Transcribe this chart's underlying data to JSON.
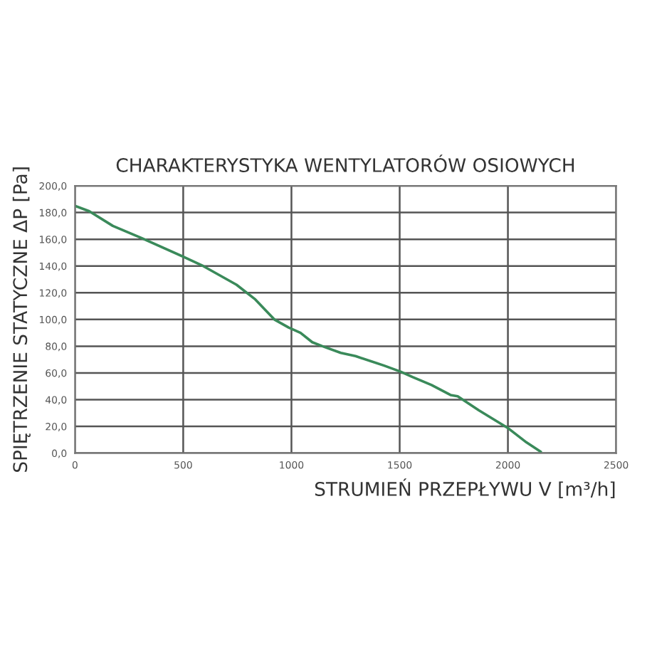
{
  "chart_data": {
    "type": "line",
    "title": "CHARAKTERYSTYKA WENTYLATORÓW OSIOWYCH",
    "xlabel": "STRUMIEŃ PRZEPŁYWU V [m³/h]",
    "ylabel": "SPIĘTRZENIE STATYCZNE ΔP [Pa]",
    "x": [
      0,
      66,
      175,
      307,
      500,
      592,
      746,
      833,
      921,
      987,
      1042,
      1096,
      1143,
      1228,
      1296,
      1428,
      1504,
      1559,
      1647,
      1735,
      1768,
      1866,
      1998,
      2086,
      2152
    ],
    "series": [
      {
        "color": "#3a8a5a",
        "values": [
          185,
          181,
          170,
          161,
          147,
          140,
          126,
          115,
          100,
          94,
          90,
          83,
          80,
          75,
          72.6,
          65.5,
          61,
          57,
          51,
          43.5,
          42.5,
          32,
          19,
          8,
          1
        ]
      }
    ],
    "xlim": [
      0,
      2500
    ],
    "xticks": [
      0,
      500,
      1000,
      1500,
      2000,
      2500
    ],
    "ylim": [
      0,
      200
    ],
    "yticks": [
      {
        "value": 0,
        "label": "0,0"
      },
      {
        "value": 20,
        "label": "20,0"
      },
      {
        "value": 40,
        "label": "40,0"
      },
      {
        "value": 60,
        "label": "60,0"
      },
      {
        "value": 80,
        "label": "80,0"
      },
      {
        "value": 100,
        "label": "100,0"
      },
      {
        "value": 120,
        "label": "120,0"
      },
      {
        "value": 140,
        "label": "140,0"
      },
      {
        "value": 160,
        "label": "160,0"
      },
      {
        "value": 180,
        "label": "180,0"
      },
      {
        "value": 200,
        "label": "200,0"
      }
    ],
    "grid": true
  }
}
